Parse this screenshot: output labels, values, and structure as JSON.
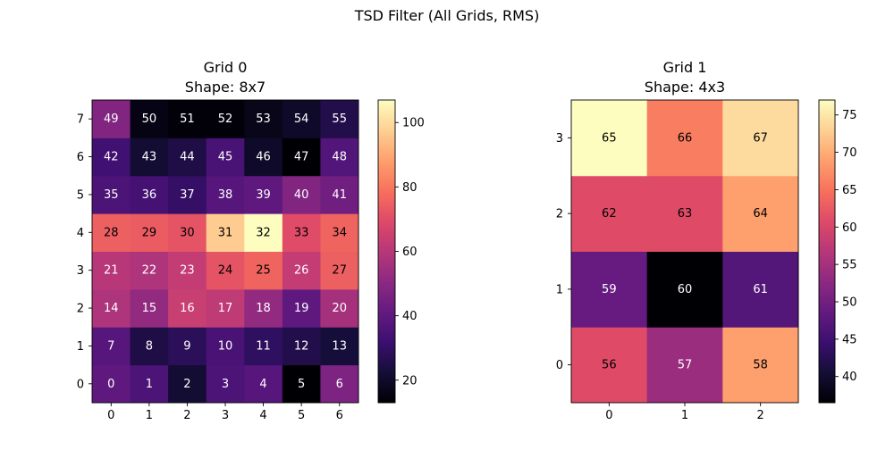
{
  "figure": {
    "title": "TSD Filter (All Grids, RMS)"
  },
  "chart_data": [
    {
      "type": "heatmap",
      "title": "Grid 0",
      "subtitle": "Shape: 8x7",
      "colormap": "magma",
      "xticks": [
        "0",
        "1",
        "2",
        "3",
        "4",
        "5",
        "6"
      ],
      "yticks": [
        "0",
        "1",
        "2",
        "3",
        "4",
        "5",
        "6",
        "7"
      ],
      "clim": [
        13,
        107
      ],
      "colorbar_ticks": [
        20,
        40,
        60,
        80,
        100
      ],
      "cells": [
        {
          "labels": [
            0,
            1,
            2,
            3,
            4,
            5,
            6
          ],
          "values": [
            40,
            36,
            22,
            36,
            38,
            13,
            47
          ]
        },
        {
          "labels": [
            7,
            8,
            9,
            10,
            11,
            12,
            13
          ],
          "values": [
            38,
            25,
            28,
            35,
            29,
            26,
            23
          ]
        },
        {
          "labels": [
            14,
            15,
            16,
            17,
            18,
            19,
            20
          ],
          "values": [
            58,
            52,
            64,
            62,
            52,
            40,
            56
          ]
        },
        {
          "labels": [
            21,
            22,
            23,
            24,
            25,
            26,
            27
          ],
          "values": [
            60,
            58,
            63,
            72,
            76,
            63,
            75
          ]
        },
        {
          "labels": [
            28,
            29,
            30,
            31,
            32,
            33,
            34
          ],
          "values": [
            75,
            74,
            72,
            97,
            107,
            70,
            76
          ]
        },
        {
          "labels": [
            35,
            36,
            37,
            38,
            39,
            40,
            41
          ],
          "values": [
            36,
            34,
            30,
            38,
            40,
            48,
            44
          ]
        },
        {
          "labels": [
            42,
            43,
            44,
            45,
            46,
            47,
            48
          ],
          "values": [
            33,
            22,
            25,
            35,
            20,
            13,
            37
          ]
        },
        {
          "labels": [
            49,
            50,
            51,
            52,
            53,
            54,
            55
          ],
          "values": [
            48,
            16,
            14,
            14,
            17,
            20,
            26
          ]
        }
      ]
    },
    {
      "type": "heatmap",
      "title": "Grid 1",
      "subtitle": "Shape: 4x3",
      "colormap": "magma",
      "xticks": [
        "0",
        "1",
        "2"
      ],
      "yticks": [
        "0",
        "1",
        "2",
        "3"
      ],
      "clim": [
        36.5,
        77
      ],
      "colorbar_ticks": [
        40,
        45,
        50,
        55,
        60,
        65,
        70,
        75
      ],
      "cells": [
        {
          "labels": [
            56,
            57,
            58
          ],
          "values": [
            61,
            54,
            69
          ]
        },
        {
          "labels": [
            59,
            60,
            61
          ],
          "values": [
            49,
            36.5,
            47
          ]
        },
        {
          "labels": [
            62,
            63,
            64
          ],
          "values": [
            61,
            61,
            69
          ]
        },
        {
          "labels": [
            65,
            66,
            67
          ],
          "values": [
            77,
            66,
            74
          ]
        }
      ]
    }
  ]
}
